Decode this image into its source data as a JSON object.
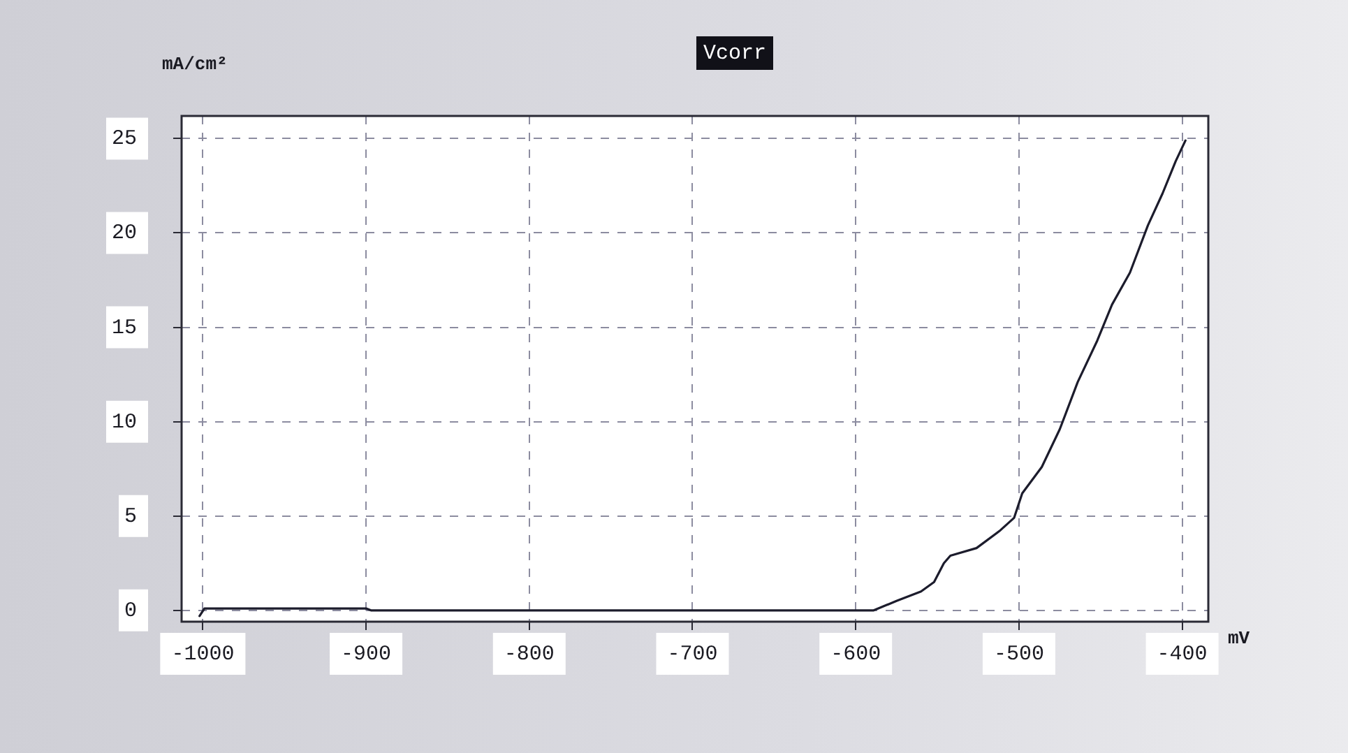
{
  "chart_data": {
    "type": "line",
    "title": "Vcorr",
    "xlabel": "mV",
    "ylabel": "mA/cm²",
    "x": [
      -1002,
      -999,
      -900,
      -897,
      -589,
      -575,
      -560,
      -552,
      -546,
      -542,
      -526,
      -512,
      -503,
      -498,
      -486,
      -475,
      -464,
      -452,
      -443,
      -432,
      -421,
      -412,
      -404,
      -398
    ],
    "values": [
      -0.3,
      0.1,
      0.1,
      0,
      0,
      0.5,
      1.0,
      1.5,
      2.5,
      2.9,
      3.3,
      4.2,
      4.9,
      6.2,
      7.6,
      9.6,
      12.1,
      14.3,
      16.2,
      17.9,
      20.4,
      22.1,
      23.8,
      24.9
    ],
    "color": "#1c1c2c",
    "xlim": [
      -1013,
      -384
    ],
    "xticks": [
      -1000,
      -900,
      -800,
      -700,
      -600,
      -500,
      -400
    ],
    "ylim": [
      -0.6,
      26.2
    ],
    "yticks": [
      0,
      5,
      10,
      15,
      20,
      25
    ],
    "grid": true
  }
}
